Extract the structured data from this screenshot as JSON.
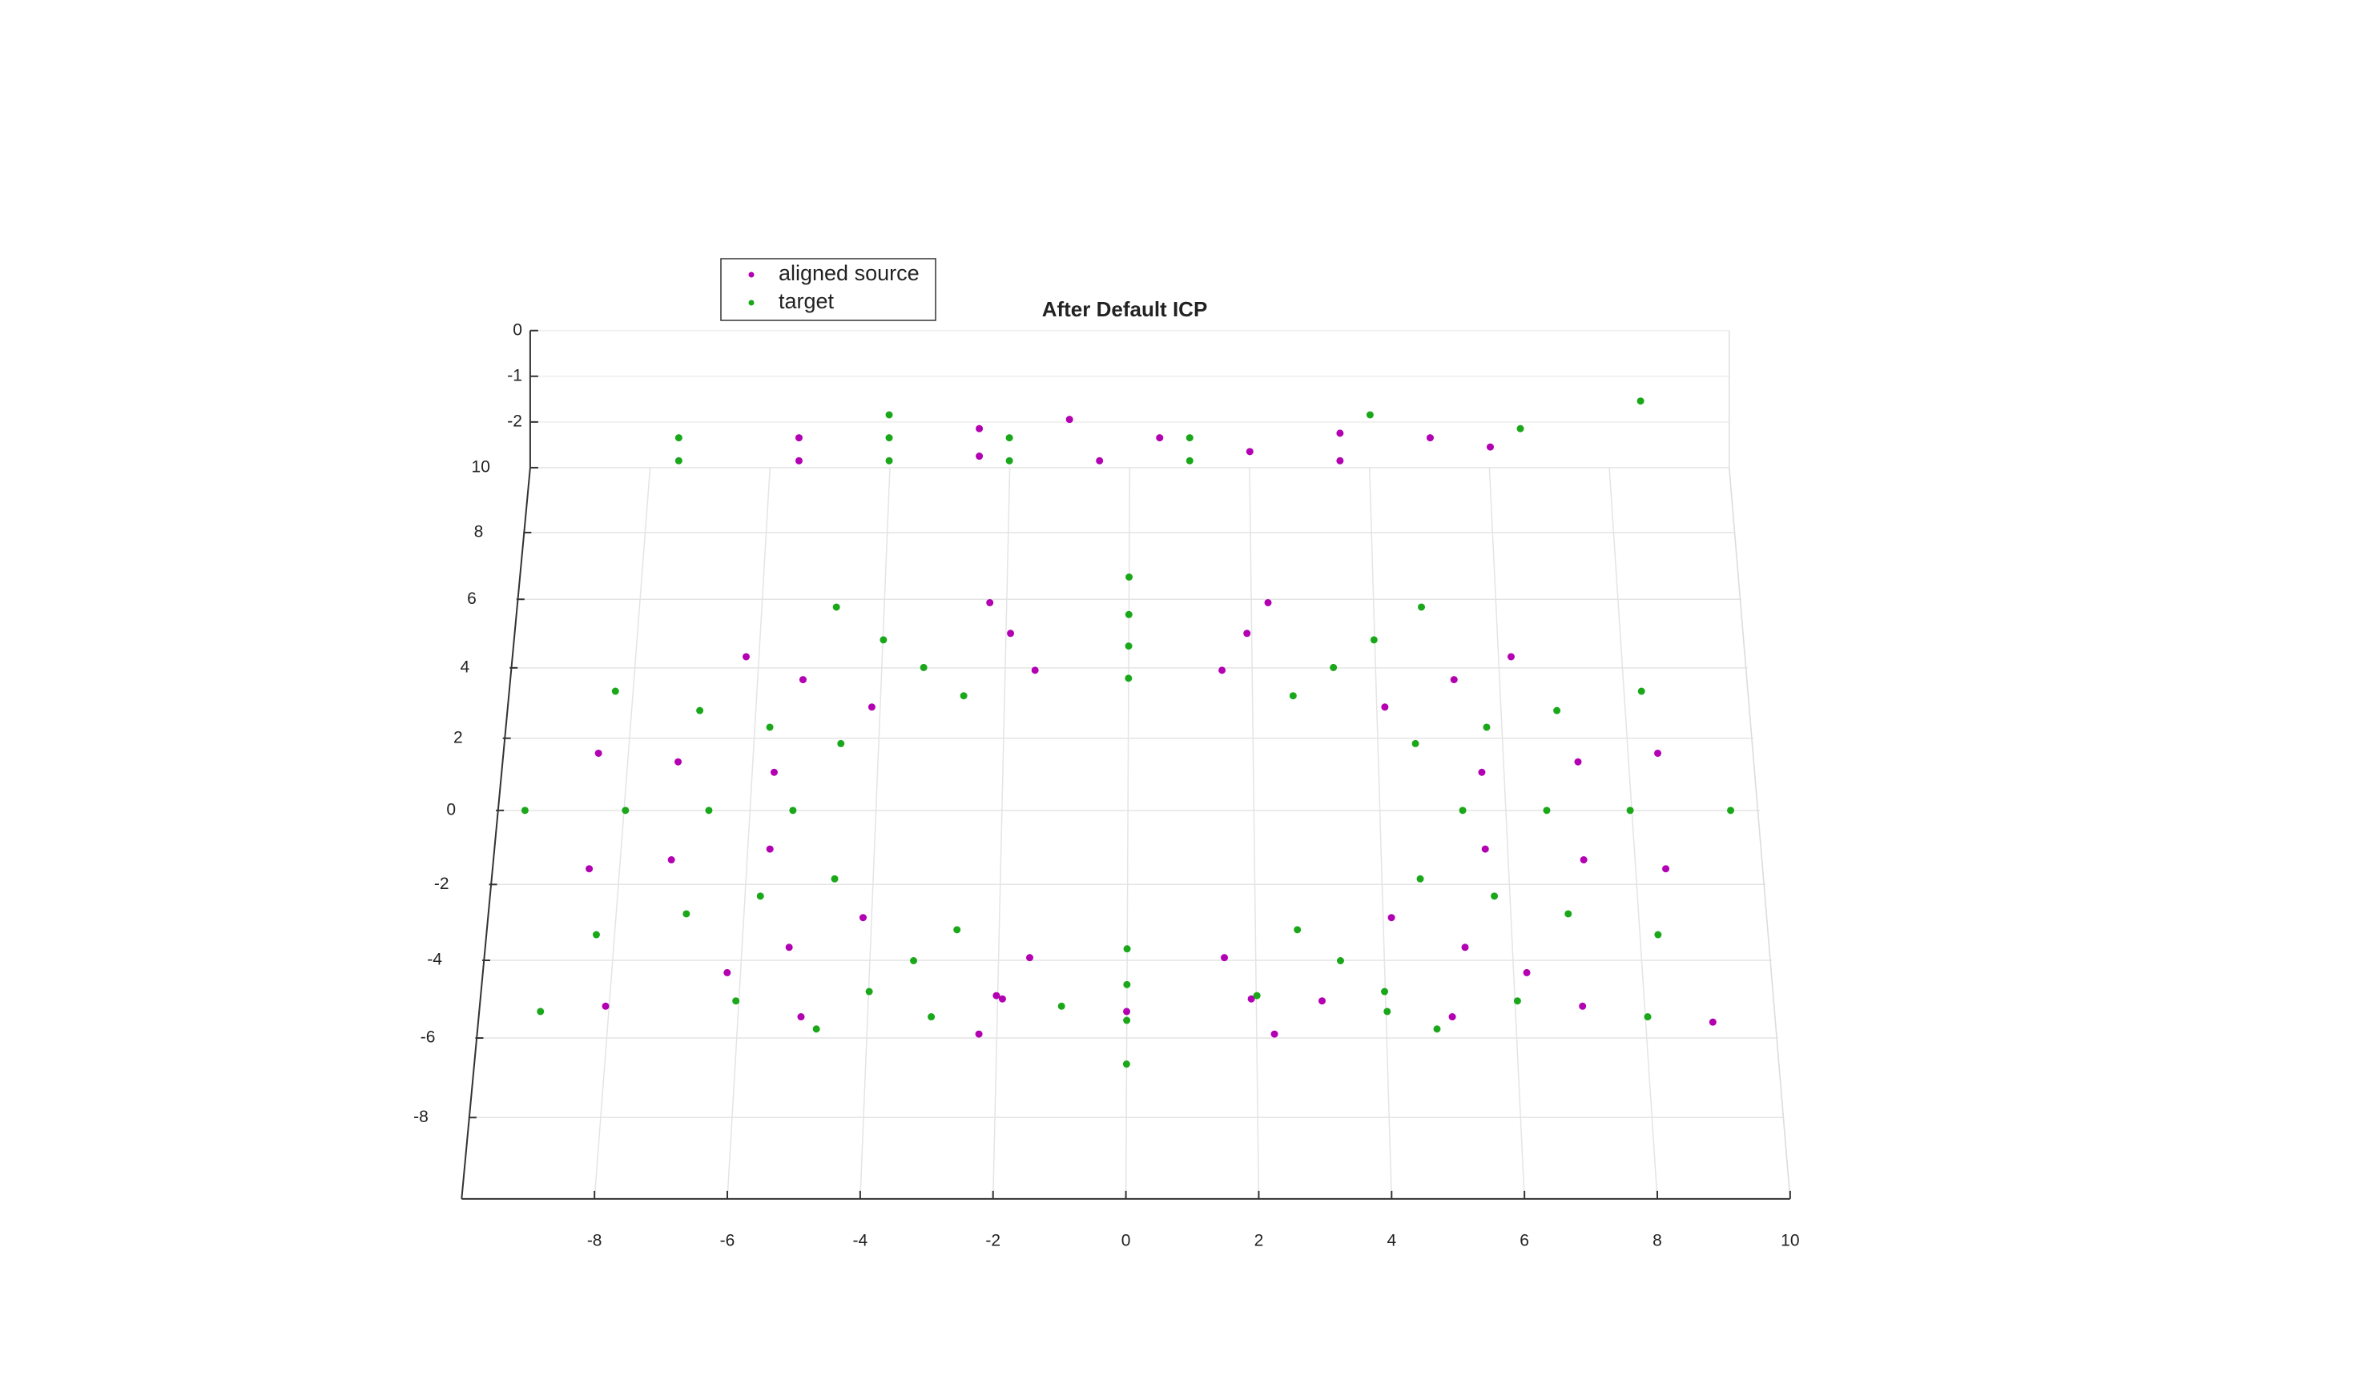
{
  "chart_data": {
    "type": "scatter3d",
    "title": "After Default ICP",
    "xlim": [
      -10,
      10
    ],
    "ylim": [
      -10,
      10
    ],
    "zlim": [
      -3,
      0
    ],
    "xticks": [
      -8,
      -6,
      -4,
      -2,
      0,
      2,
      4,
      6,
      8,
      10
    ],
    "yticks": [
      -8,
      -6,
      -4,
      -2,
      0,
      2,
      4,
      6,
      8,
      10
    ],
    "zticks": [
      0,
      -1,
      -2
    ],
    "grid": true,
    "legend": "top-left",
    "series": [
      {
        "name": "aligned source",
        "color": "#b200b2",
        "x": [
          5.63,
          4.12,
          1.51,
          -1.51,
          -4.12,
          -5.63,
          -5.63,
          -4.12,
          -1.51,
          1.51,
          4.12,
          5.63,
          7.17,
          5.25,
          1.92,
          -1.92,
          -5.25,
          -7.17,
          -7.17,
          -5.25,
          -1.92,
          1.92,
          5.25,
          7.17,
          8.45,
          6.19,
          2.27,
          -2.27,
          -6.19,
          -8.45,
          -8.45,
          -6.19,
          -2.27,
          2.27,
          6.19,
          8.45,
          -5.5,
          -5.5,
          -2.5,
          -2.5,
          -0.5,
          0.5,
          2,
          3.5,
          3.5,
          -1,
          6,
          5,
          -8,
          -5,
          -2,
          0,
          3,
          5,
          7,
          9
        ],
        "y": [
          1.05,
          2.88,
          3.93,
          3.93,
          2.88,
          1.05,
          -1.05,
          -2.88,
          -3.93,
          -3.93,
          -2.88,
          -1.05,
          1.34,
          3.66,
          5.0,
          5.0,
          3.66,
          1.34,
          -1.34,
          -3.66,
          -5.0,
          -5.0,
          -3.66,
          -1.34,
          1.58,
          4.32,
          5.9,
          5.9,
          4.32,
          1.58,
          -1.58,
          -4.32,
          -5.9,
          -5.9,
          -4.32,
          -1.58,
          9.5,
          9.5,
          9.5,
          9.5,
          9.5,
          9.5,
          9.5,
          9.5,
          9.5,
          9.5,
          9.5,
          9.5,
          -6,
          -6,
          -6,
          -6,
          -6,
          -6,
          -6,
          -6
        ],
        "z": [
          -3,
          -3,
          -3,
          -3,
          -3,
          -3,
          -3,
          -3,
          -3,
          -3,
          -3,
          -3,
          -3,
          -3,
          -3,
          -3,
          -3,
          -3,
          -3,
          -3,
          -3,
          -3,
          -3,
          -3,
          -3,
          -3,
          -3,
          -3,
          -3,
          -3,
          -3,
          -3,
          -3,
          -3,
          -3,
          -3,
          -2.5,
          -2,
          -2.4,
          -1.8,
          -2.5,
          -2,
          -2.3,
          -2.5,
          -1.9,
          -1.6,
          -2.2,
          -2,
          -2.4,
          -2.6,
          -2.2,
          -2.5,
          -2.3,
          -2.6,
          -2.4,
          -2.7
        ]
      },
      {
        "name": "target",
        "color": "#1aa81a",
        "x": [
          5.3,
          4.59,
          2.65,
          0,
          -2.65,
          -4.59,
          -5.3,
          -4.59,
          -2.65,
          0,
          2.65,
          4.59,
          6.63,
          5.74,
          3.31,
          0,
          -3.31,
          -5.74,
          -6.63,
          -5.74,
          -3.31,
          0,
          3.31,
          5.74,
          7.95,
          6.88,
          3.98,
          0,
          -3.98,
          -6.88,
          -7.95,
          -6.88,
          -3.98,
          0,
          3.98,
          6.88,
          9.54,
          8.26,
          4.77,
          0,
          -4.77,
          -8.26,
          -9.54,
          -8.26,
          -4.77,
          0,
          4.77,
          8.26,
          -7.5,
          -7.5,
          -4,
          -4,
          -4,
          -2,
          -2,
          1,
          1,
          4,
          6.5,
          8.5,
          -9,
          -6,
          -3,
          -1,
          2,
          4,
          6,
          8
        ],
        "y": [
          0,
          1.85,
          3.2,
          3.7,
          3.2,
          1.85,
          0,
          -1.85,
          -3.2,
          -3.7,
          -3.2,
          -1.85,
          0,
          2.31,
          4.01,
          4.63,
          4.01,
          2.31,
          0,
          -2.31,
          -4.01,
          -4.63,
          -4.01,
          -2.31,
          0,
          2.78,
          4.81,
          5.55,
          4.81,
          2.78,
          0,
          -2.78,
          -4.81,
          -5.55,
          -4.81,
          -2.78,
          0,
          3.33,
          5.77,
          6.66,
          5.77,
          3.33,
          0,
          -3.33,
          -5.77,
          -6.66,
          -5.77,
          -3.33,
          9.5,
          9.5,
          9.5,
          9.5,
          9.5,
          9.5,
          9.5,
          9.5,
          9.5,
          9.5,
          9.5,
          9.5,
          -6,
          -6,
          -6,
          -6,
          -6,
          -6,
          -6,
          -6
        ],
        "z": [
          -3,
          -3,
          -3,
          -3,
          -3,
          -3,
          -3,
          -3,
          -3,
          -3,
          -3,
          -3,
          -3,
          -3,
          -3,
          -3,
          -3,
          -3,
          -3,
          -3,
          -3,
          -3,
          -3,
          -3,
          -3,
          -3,
          -3,
          -3,
          -3,
          -3,
          -3,
          -3,
          -3,
          -3,
          -3,
          -3,
          -3,
          -3,
          -3,
          -3,
          -3,
          -3,
          -3,
          -3,
          -3,
          -3,
          -3,
          -3,
          -2.5,
          -2,
          -2.5,
          -2,
          -1.5,
          -2.5,
          -2,
          -2.5,
          -2,
          -1.5,
          -1.8,
          -1.2,
          -2.5,
          -2.3,
          -2.6,
          -2.4,
          -2.2,
          -2.5,
          -2.3,
          -2.6
        ]
      }
    ]
  }
}
